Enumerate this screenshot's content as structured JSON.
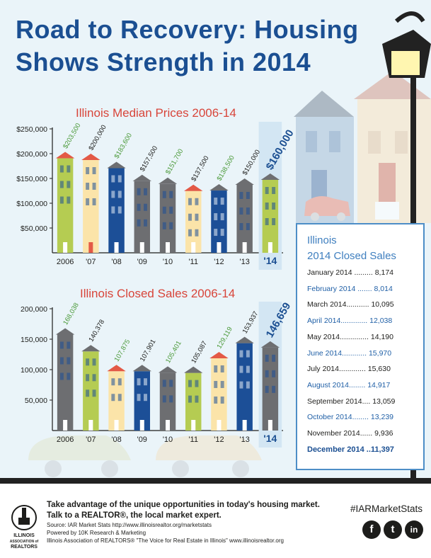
{
  "title_line1": "Road to Recovery: Housing",
  "title_line2": "Shows Strength in 2014",
  "chart_data": [
    {
      "type": "bar",
      "title": "Illinois Median Prices 2006-14",
      "categories": [
        "2006",
        "'07",
        "'08",
        "'09",
        "'10",
        "'11",
        "'12",
        "'13",
        "'14"
      ],
      "values": [
        203500,
        200000,
        183600,
        157500,
        151700,
        137500,
        138500,
        150000,
        160000
      ],
      "value_labels": [
        "$203,500",
        "$200,000",
        "$183,600",
        "$157,500",
        "$151,700",
        "$137,500",
        "$138,500",
        "$150,000",
        "$160,000"
      ],
      "yticks": [
        "$250,000",
        "$200,000",
        "$150,000",
        "$100,000",
        "$50,000"
      ],
      "ylim": [
        0,
        250000
      ],
      "label_colors": [
        "#4c9a3a",
        "#1d1d1b",
        "#4c9a3a",
        "#1d1d1b",
        "#4c9a3a",
        "#1d1d1b",
        "#4c9a3a",
        "#1d1d1b",
        "#1b4f92"
      ],
      "bar_colors": [
        "#b5cc52",
        "#fbe4a9",
        "#1c4f97",
        "#6d6e71",
        "#6d6e71",
        "#fbe4a9",
        "#1c4f97",
        "#6d6e71",
        "#b5cc52"
      ],
      "roof_colors": [
        "#e35946",
        "#e35946",
        "#6d6e71",
        "#6d6e71",
        "#6d6e71",
        "#e35946",
        "#6d6e71",
        "#6d6e71",
        "#6d6e71"
      ]
    },
    {
      "type": "bar",
      "title": "Illinois Closed Sales 2006-14",
      "categories": [
        "2006",
        "'07",
        "'08",
        "'09",
        "'10",
        "'11",
        "'12",
        "'13",
        "'14"
      ],
      "values": [
        168038,
        140378,
        107875,
        107901,
        105401,
        105087,
        129119,
        153937,
        146659
      ],
      "value_labels": [
        "168,038",
        "140,378",
        "107,875",
        "107,901",
        "105,401",
        "105,087",
        "129,119",
        "153,937",
        "146,659"
      ],
      "yticks": [
        "200,000",
        "150,000",
        "100,000",
        "50,000"
      ],
      "ylim": [
        0,
        200000
      ],
      "label_colors": [
        "#4c9a3a",
        "#1d1d1b",
        "#4c9a3a",
        "#1d1d1b",
        "#4c9a3a",
        "#1d1d1b",
        "#4c9a3a",
        "#1d1d1b",
        "#1b4f92"
      ],
      "bar_colors": [
        "#6d6e71",
        "#b5cc52",
        "#fbe4a9",
        "#1c4f97",
        "#6d6e71",
        "#b5cc52",
        "#fbe4a9",
        "#1c4f97",
        "#6d6e71"
      ],
      "roof_colors": [
        "#6d6e71",
        "#6d6e71",
        "#e35946",
        "#6d6e71",
        "#6d6e71",
        "#6d6e71",
        "#e35946",
        "#6d6e71",
        "#6d6e71"
      ]
    }
  ],
  "sales_box": {
    "title1": "Illinois",
    "title2": "2014 Closed Sales",
    "rows": [
      {
        "text": "January 2014 ......... 8,174",
        "style": "dark"
      },
      {
        "text": "February 2014 ....... 8,014",
        "style": "blue"
      },
      {
        "text": "March 2014........... 10,095",
        "style": "dark"
      },
      {
        "text": "April 2014............. 12,038",
        "style": "blue"
      },
      {
        "text": "May 2014.............. 14,190",
        "style": "dark"
      },
      {
        "text": "June 2014............ 15,970",
        "style": "blue"
      },
      {
        "text": "July 2014............. 15,630",
        "style": "dark"
      },
      {
        "text": "August 2014........ 14,917",
        "style": "blue"
      },
      {
        "text": "September 2014.... 13,059",
        "style": "dark"
      },
      {
        "text": "October 2014........ 13,239",
        "style": "blue"
      },
      {
        "text": "November 2014...... 9,936",
        "style": "dark"
      },
      {
        "text": "December 2014 ..11,397",
        "style": "last"
      }
    ]
  },
  "footer": {
    "line1": "Take advantage of the unique opportunities in today's housing market.",
    "line2": "Talk to a REALTOR®, the local market expert.",
    "line3": "Source: IAR Market Stats http://www.illinoisrealtor.org/marketstats",
    "line4": "Powered by 10K Research & Marketing",
    "line5": "Illinois Association of REALTORS® \"The Voice for Real Estate in Illinois\" www.illinoisrealtor.org",
    "hashtag": "#IARMarketStats",
    "logo_lines": [
      "ILLINOIS",
      "ASSOCIATION of",
      "REALTORS"
    ],
    "social": [
      {
        "icon": "facebook-icon",
        "glyph": "f"
      },
      {
        "icon": "twitter-icon",
        "glyph": "t"
      },
      {
        "icon": "linkedin-icon",
        "glyph": "in"
      }
    ]
  }
}
